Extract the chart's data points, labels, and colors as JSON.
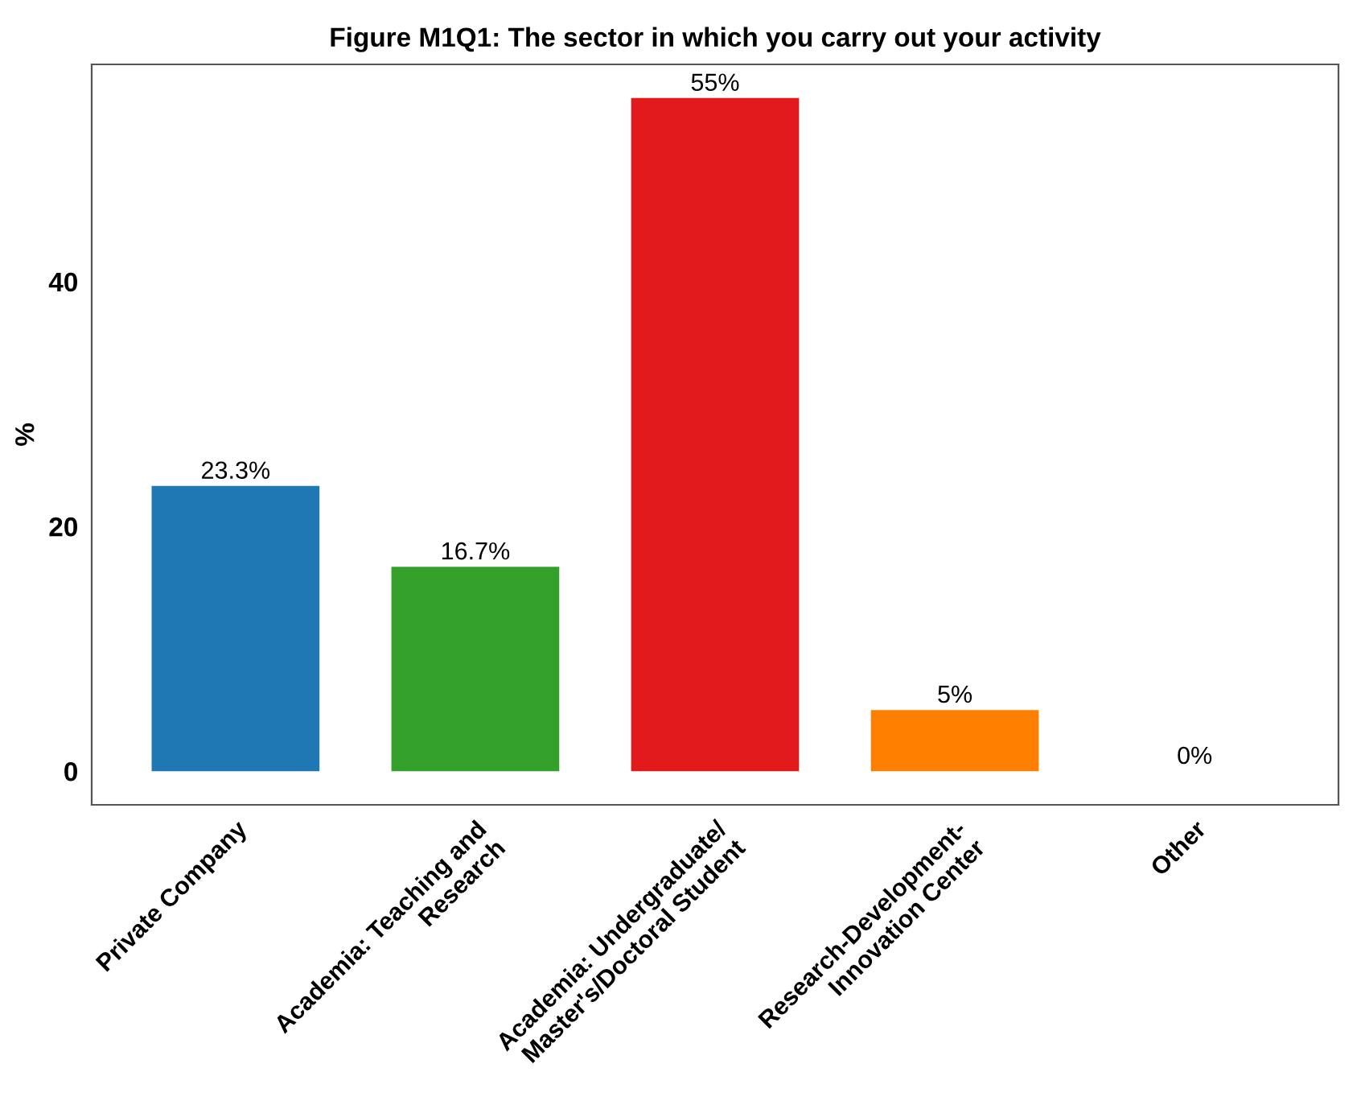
{
  "chart_data": {
    "type": "bar",
    "title": "Figure M1Q1: The sector in which you carry out your activity",
    "ylabel": "%",
    "categories": [
      "Private Company",
      "Academia: Teaching and\nResearch",
      "Academia: Undergraduate/\nMaster's/Doctoral Student",
      "Research-Development-\nInnovation Center",
      "Other"
    ],
    "values": [
      23.3,
      16.7,
      55,
      5,
      0
    ],
    "colors": [
      "#1f78b4",
      "#33a02c",
      "#e31a1c",
      "#ff7f00",
      "#6a3d9a"
    ],
    "value_labels": [
      "23.3%",
      "16.7%",
      "55%",
      "5%",
      "0%"
    ],
    "ylim": [
      -2.75,
      57.75
    ],
    "yticks": [
      0,
      20,
      40
    ],
    "grid": false,
    "legend": false
  }
}
